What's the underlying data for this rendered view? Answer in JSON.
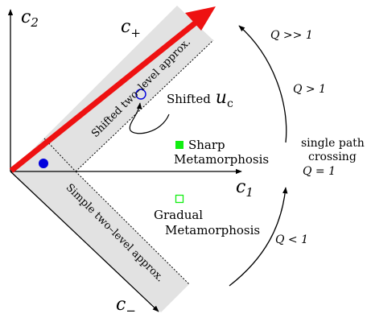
{
  "axes": {
    "c2": {
      "base": "c",
      "sub": "2"
    },
    "c1": {
      "base": "c",
      "sub": "1"
    },
    "c_plus": {
      "base": "c",
      "sub": "+"
    },
    "c_minus": {
      "base": "c",
      "sub": "−"
    }
  },
  "bands": {
    "upper": "Shifted two–level approx.",
    "lower": "Simple two–level approx."
  },
  "shifted_uc": {
    "prefix": "Shifted",
    "symbol": "u",
    "sub": "c"
  },
  "legend": {
    "sharp": {
      "line1": "Sharp",
      "line2": "Metamorphosis"
    },
    "gradual": {
      "line1": "Gradual",
      "line2": "Metamorphosis"
    }
  },
  "regimes": {
    "q_much_greater": "Q >> 1",
    "q_greater": "Q > 1",
    "single_path_line1": "single path",
    "single_path_line2": "crossing",
    "q_equal": "Q = 1",
    "q_less": "Q < 1"
  },
  "colors": {
    "red": "#ee1111",
    "band": "#e2e2e2",
    "blue": "#0000dd",
    "green": "#11ee11",
    "ink": "#000000"
  }
}
